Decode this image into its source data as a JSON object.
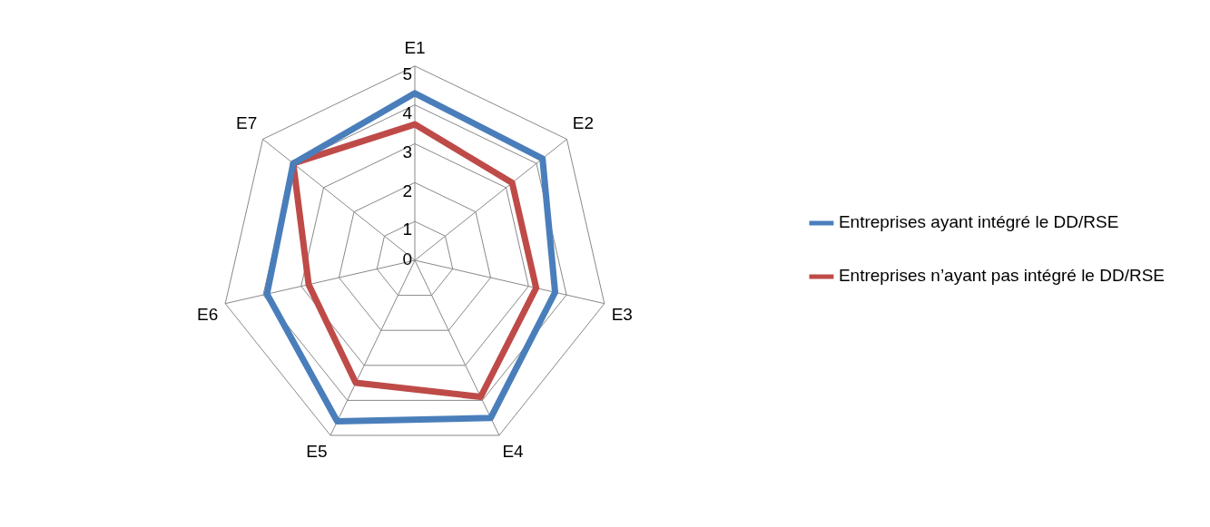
{
  "chart_data": {
    "type": "radar",
    "categories": [
      "E1",
      "E2",
      "E3",
      "E4",
      "E5",
      "E6",
      "E7"
    ],
    "series": [
      {
        "name": "Entreprises ayant intégré le DD/RSE",
        "color": "#4a7ebb",
        "values": [
          4.3,
          4.2,
          3.7,
          4.5,
          4.6,
          3.9,
          4.0
        ]
      },
      {
        "name": "Entreprises n’ayant pas intégré le DD/RSE",
        "color": "#be4b48",
        "values": [
          3.5,
          3.2,
          3.2,
          3.9,
          3.5,
          2.8,
          4.0
        ]
      }
    ],
    "ylim": [
      0,
      5
    ],
    "yticks": [
      0,
      1,
      2,
      3,
      4,
      5
    ],
    "grid": true,
    "legend": "right",
    "marker": "none"
  }
}
